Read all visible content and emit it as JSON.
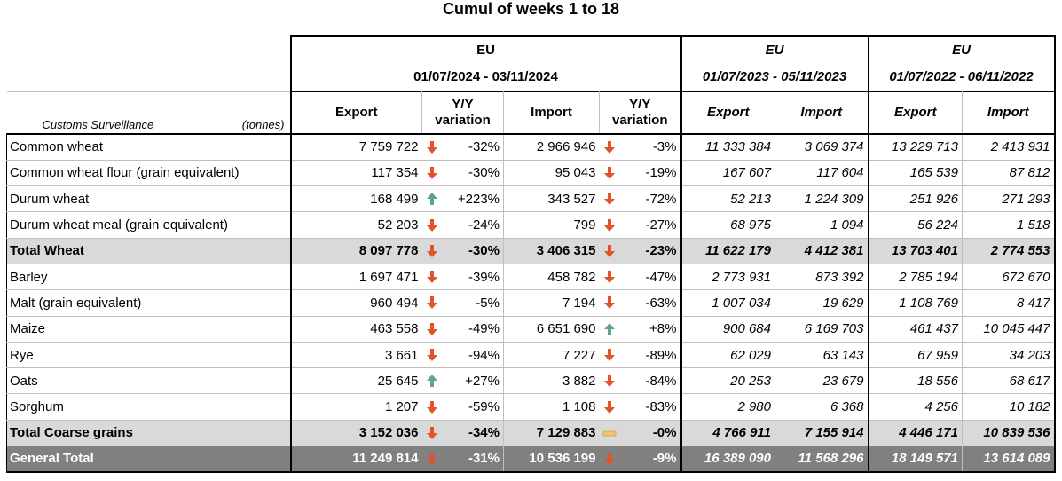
{
  "title": "Cumul of weeks 1 to 18",
  "colors": {
    "down": "#e0532b",
    "up": "#5fa58a",
    "flat": "#f3c36b",
    "total_bg": "#d9d9d9",
    "grand_bg": "#808080"
  },
  "header": {
    "surveillance": "Customs Surveillance",
    "unit": "(tonnes)",
    "groups": [
      {
        "region": "EU",
        "period": "01/07/2024 - 03/11/2024"
      },
      {
        "region": "EU",
        "period": "01/07/2023 - 05/11/2023"
      },
      {
        "region": "EU",
        "period": "01/07/2022 - 06/11/2022"
      }
    ],
    "export": "Export",
    "import": "Import",
    "yy_line1": "Y/Y",
    "yy_line2": "variation"
  },
  "rows": [
    {
      "label": "Common wheat",
      "exp": "7 759 722",
      "exp_trend": "down",
      "exp_var": "-32%",
      "imp": "2 966 946",
      "imp_trend": "down",
      "imp_var": "-3%",
      "exp23": "11 333 384",
      "imp23": "3 069 374",
      "exp22": "13 229 713",
      "imp22": "2 413 931"
    },
    {
      "label": "Common wheat flour (grain equivalent)",
      "exp": "117 354",
      "exp_trend": "down",
      "exp_var": "-30%",
      "imp": "95 043",
      "imp_trend": "down",
      "imp_var": "-19%",
      "exp23": "167 607",
      "imp23": "117 604",
      "exp22": "165 539",
      "imp22": "87 812"
    },
    {
      "label": "Durum wheat",
      "exp": "168 499",
      "exp_trend": "up",
      "exp_var": "+223%",
      "imp": "343 527",
      "imp_trend": "down",
      "imp_var": "-72%",
      "exp23": "52 213",
      "imp23": "1 224 309",
      "exp22": "251 926",
      "imp22": "271 293"
    },
    {
      "label": "Durum wheat meal (grain equivalent)",
      "exp": "52 203",
      "exp_trend": "down",
      "exp_var": "-24%",
      "imp": "799",
      "imp_trend": "down",
      "imp_var": "-27%",
      "exp23": "68 975",
      "imp23": "1 094",
      "exp22": "56 224",
      "imp22": "1 518"
    },
    {
      "label": "Total Wheat",
      "kind": "total",
      "exp": "8 097 778",
      "exp_trend": "down",
      "exp_var": "-30%",
      "imp": "3 406 315",
      "imp_trend": "down",
      "imp_var": "-23%",
      "exp23": "11 622 179",
      "imp23": "4 412 381",
      "exp22": "13 703 401",
      "imp22": "2 774 553"
    },
    {
      "label": "Barley",
      "exp": "1 697 471",
      "exp_trend": "down",
      "exp_var": "-39%",
      "imp": "458 782",
      "imp_trend": "down",
      "imp_var": "-47%",
      "exp23": "2 773 931",
      "imp23": "873 392",
      "exp22": "2 785 194",
      "imp22": "672 670"
    },
    {
      "label": "Malt (grain equivalent)",
      "exp": "960 494",
      "exp_trend": "down",
      "exp_var": "-5%",
      "imp": "7 194",
      "imp_trend": "down",
      "imp_var": "-63%",
      "exp23": "1 007 034",
      "imp23": "19 629",
      "exp22": "1 108 769",
      "imp22": "8 417"
    },
    {
      "label": "Maize",
      "exp": "463 558",
      "exp_trend": "down",
      "exp_var": "-49%",
      "imp": "6 651 690",
      "imp_trend": "up",
      "imp_var": "+8%",
      "exp23": "900 684",
      "imp23": "6 169 703",
      "exp22": "461 437",
      "imp22": "10 045 447"
    },
    {
      "label": "Rye",
      "exp": "3 661",
      "exp_trend": "down",
      "exp_var": "-94%",
      "imp": "7 227",
      "imp_trend": "down",
      "imp_var": "-89%",
      "exp23": "62 029",
      "imp23": "63 143",
      "exp22": "67 959",
      "imp22": "34 203"
    },
    {
      "label": "Oats",
      "exp": "25 645",
      "exp_trend": "up",
      "exp_var": "+27%",
      "imp": "3 882",
      "imp_trend": "down",
      "imp_var": "-84%",
      "exp23": "20 253",
      "imp23": "23 679",
      "exp22": "18 556",
      "imp22": "68 617"
    },
    {
      "label": "Sorghum",
      "exp": "1 207",
      "exp_trend": "down",
      "exp_var": "-59%",
      "imp": "1 108",
      "imp_trend": "down",
      "imp_var": "-83%",
      "exp23": "2 980",
      "imp23": "6 368",
      "exp22": "4 256",
      "imp22": "10 182"
    },
    {
      "label": "Total Coarse grains",
      "kind": "total",
      "exp": "3 152 036",
      "exp_trend": "down",
      "exp_var": "-34%",
      "imp": "7 129 883",
      "imp_trend": "flat",
      "imp_var": "-0%",
      "exp23": "4 766 911",
      "imp23": "7 155 914",
      "exp22": "4 446 171",
      "imp22": "10 839 536"
    },
    {
      "label": "General Total",
      "kind": "grand",
      "exp": "11 249 814",
      "exp_trend": "down",
      "exp_var": "-31%",
      "imp": "10 536 199",
      "imp_trend": "down",
      "imp_var": "-9%",
      "exp23": "16 389 090",
      "imp23": "11 568 296",
      "exp22": "18 149 571",
      "imp22": "13 614 089"
    }
  ]
}
